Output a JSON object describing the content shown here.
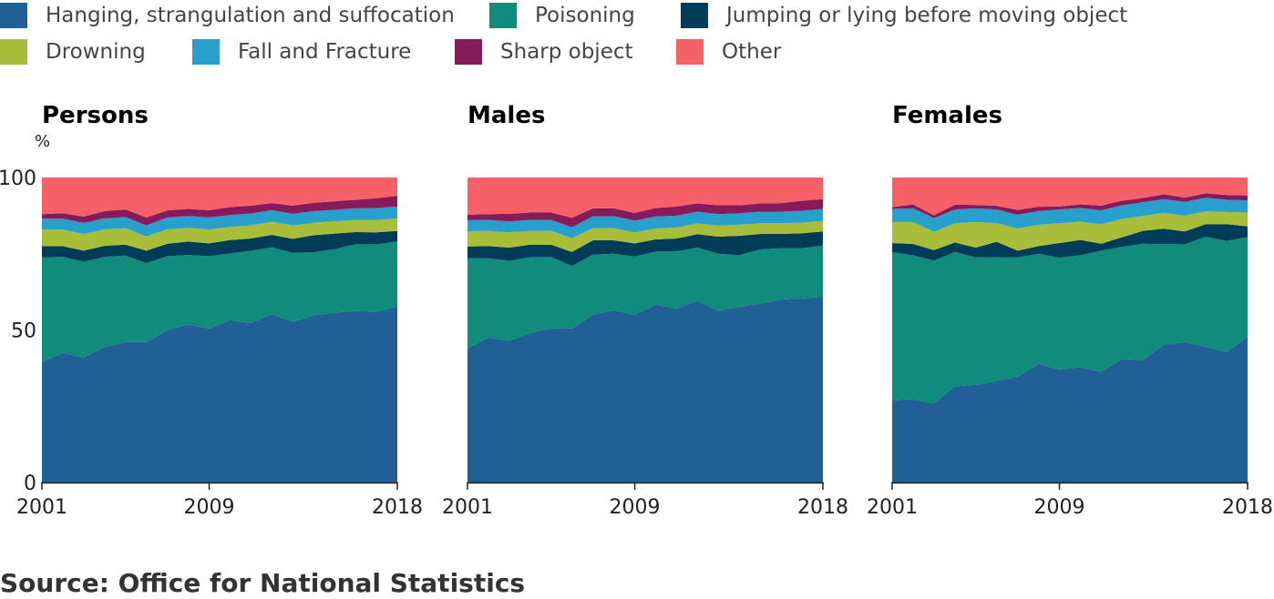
{
  "legend": [
    {
      "label": "Hanging, strangulation and suffocation",
      "color": "#206095"
    },
    {
      "label": "Poisoning",
      "color": "#118c7b"
    },
    {
      "label": "Jumping or lying before moving object",
      "color": "#003c57"
    },
    {
      "label": "Drowning",
      "color": "#a8bd3a"
    },
    {
      "label": "Fall and Fracture",
      "color": "#27a0cc"
    },
    {
      "label": "Sharp object",
      "color": "#871a5b"
    },
    {
      "label": "Other",
      "color": "#f66068"
    }
  ],
  "source": "Source: Office for National Statistics",
  "chart_data": [
    {
      "type": "area",
      "stacked": true,
      "title": "Persons",
      "ylabel": "%",
      "ylim": [
        0,
        100
      ],
      "yticks": [
        0,
        50,
        100
      ],
      "xticks": [
        2001,
        2009,
        2018
      ],
      "x": [
        2001,
        2002,
        2003,
        2004,
        2005,
        2006,
        2007,
        2008,
        2009,
        2010,
        2011,
        2012,
        2013,
        2014,
        2015,
        2016,
        2017,
        2018
      ],
      "series": [
        {
          "name": "Hanging, strangulation and suffocation",
          "values": [
            39.5,
            42.5,
            41,
            44.5,
            46,
            46,
            50,
            51.8,
            50.5,
            53.2,
            52.3,
            55.2,
            52.7,
            54.8,
            55.7,
            56.2,
            56,
            57.7
          ]
        },
        {
          "name": "Poisoning",
          "values": [
            34.3,
            31.5,
            31.4,
            29.5,
            28.4,
            25.9,
            24.2,
            22.8,
            23.7,
            21.9,
            23.7,
            21.9,
            22.6,
            20.7,
            20.8,
            21.9,
            22.1,
            21.3
          ]
        },
        {
          "name": "Jumping or lying before moving object",
          "values": [
            3.7,
            3.5,
            3.6,
            3.6,
            3.6,
            4.1,
            4.1,
            4.4,
            4.2,
            4.4,
            4.0,
            4.1,
            4.6,
            5.6,
            5.1,
            4.0,
            3.9,
            3.5
          ]
        },
        {
          "name": "Drowning",
          "values": [
            5.4,
            5.4,
            5.5,
            5.4,
            5.4,
            4.7,
            4.7,
            4.5,
            4.6,
            4.3,
            4.3,
            4.3,
            4.4,
            4.1,
            4.0,
            4.0,
            4.1,
            4.1
          ]
        },
        {
          "name": "Fall and Fracture",
          "values": [
            3.6,
            3.6,
            3.6,
            3.6,
            3.6,
            3.6,
            3.9,
            3.9,
            3.9,
            3.9,
            3.9,
            3.8,
            3.8,
            3.8,
            3.8,
            3.8,
            3.9,
            3.9
          ]
        },
        {
          "name": "Sharp object",
          "values": [
            1.5,
            1.8,
            2.1,
            2.4,
            2.5,
            2.6,
            2.3,
            2.3,
            2.4,
            2.6,
            2.6,
            2.3,
            2.7,
            2.7,
            2.8,
            2.8,
            3.2,
            3.5
          ]
        },
        {
          "name": "Other",
          "values": [
            12.0,
            11.7,
            12.8,
            11.0,
            10.5,
            13.1,
            10.8,
            10.3,
            10.7,
            9.7,
            9.2,
            8.4,
            9.2,
            8.3,
            7.8,
            7.3,
            6.8,
            6.0
          ]
        }
      ]
    },
    {
      "type": "area",
      "stacked": true,
      "title": "Males",
      "ylim": [
        0,
        100
      ],
      "xticks": [
        2001,
        2009,
        2018
      ],
      "x": [
        2001,
        2002,
        2003,
        2004,
        2005,
        2006,
        2007,
        2008,
        2009,
        2010,
        2011,
        2012,
        2013,
        2014,
        2015,
        2016,
        2017,
        2018
      ],
      "series": [
        {
          "name": "Hanging, strangulation and suffocation",
          "values": [
            44,
            47.5,
            46.5,
            49,
            50.5,
            50.5,
            55,
            56.5,
            55,
            58.3,
            57,
            59.5,
            56.3,
            57.5,
            58.7,
            60,
            60.3,
            60.9
          ]
        },
        {
          "name": "Poisoning",
          "values": [
            29.6,
            26.0,
            26.2,
            24.9,
            23.4,
            20.5,
            19.7,
            18.5,
            19.1,
            17.4,
            18.8,
            17.5,
            18.7,
            17.0,
            17.7,
            16.8,
            16.5,
            16.8
          ]
        },
        {
          "name": "Jumping or lying before moving object",
          "values": [
            3.8,
            4.0,
            4.3,
            4.1,
            4.1,
            4.6,
            4.7,
            4.4,
            4.3,
            4.0,
            4.2,
            4.4,
            5.6,
            6.4,
            5.1,
            4.7,
            4.9,
            4.6
          ]
        },
        {
          "name": "Drowning",
          "values": [
            5.0,
            5.0,
            5.0,
            4.5,
            4.5,
            4.5,
            4.0,
            4.0,
            3.6,
            3.6,
            3.6,
            3.6,
            3.6,
            3.6,
            3.5,
            3.5,
            3.5,
            3.5
          ]
        },
        {
          "name": "Fall and Fracture",
          "values": [
            3.6,
            3.6,
            3.6,
            3.6,
            3.6,
            3.6,
            3.9,
            3.9,
            3.9,
            3.9,
            3.9,
            3.8,
            3.8,
            3.8,
            3.8,
            3.8,
            3.9,
            3.9
          ]
        },
        {
          "name": "Sharp object",
          "values": [
            1.8,
            1.9,
            2.5,
            2.4,
            2.4,
            3.1,
            2.6,
            2.6,
            2.5,
            2.8,
            3.0,
            2.7,
            2.9,
            2.6,
            2.7,
            2.8,
            3.3,
            3.2
          ]
        },
        {
          "name": "Other",
          "values": [
            12.2,
            12.0,
            11.9,
            11.5,
            11.5,
            13.2,
            10.1,
            10.1,
            11.6,
            10.0,
            9.5,
            8.5,
            9.1,
            9.1,
            8.5,
            8.4,
            7.6,
            7.1
          ]
        }
      ]
    },
    {
      "type": "area",
      "stacked": true,
      "title": "Females",
      "ylim": [
        0,
        100
      ],
      "xticks": [
        2001,
        2009,
        2018
      ],
      "x": [
        2001,
        2002,
        2003,
        2004,
        2005,
        2006,
        2007,
        2008,
        2009,
        2010,
        2011,
        2012,
        2013,
        2014,
        2015,
        2016,
        2017,
        2018
      ],
      "series": [
        {
          "name": "Hanging, strangulation and suffocation",
          "values": [
            27,
            27.3,
            26,
            31.5,
            32,
            33.3,
            34.7,
            38.9,
            37,
            37.8,
            36.3,
            40.5,
            40.2,
            45.2,
            46,
            44.5,
            42.7,
            47.8
          ]
        },
        {
          "name": "Poisoning",
          "values": [
            48.5,
            47.2,
            46.8,
            44.1,
            41.8,
            40.6,
            39.1,
            36.1,
            36.7,
            36.7,
            39.7,
            36.8,
            38.1,
            33.0,
            32.1,
            36.1,
            36.5,
            32.7
          ]
        },
        {
          "name": "Jumping or lying before moving object",
          "values": [
            3.0,
            3.7,
            3.4,
            3.1,
            3.2,
            5.0,
            2.2,
            2.5,
            4.8,
            5.0,
            2.3,
            3.1,
            4.2,
            5.0,
            4.2,
            4.1,
            5.5,
            3.5
          ]
        },
        {
          "name": "Drowning",
          "values": [
            6.9,
            7.2,
            6.0,
            6.3,
            8.4,
            6.1,
            7.3,
            7.0,
            6.5,
            6.0,
            6.4,
            6.0,
            4.9,
            5.2,
            5.2,
            4.2,
            4.0,
            4.5
          ]
        },
        {
          "name": "Fall and Fracture",
          "values": [
            4.3,
            4.5,
            4.5,
            4.5,
            4.5,
            4.5,
            4.5,
            4.5,
            4.5,
            4.5,
            4.5,
            4.5,
            4.5,
            4.5,
            4.5,
            4.5,
            4.0,
            4.0
          ]
        },
        {
          "name": "Sharp object",
          "values": [
            0.6,
            1.3,
            0.9,
            1.6,
            1.1,
            1.2,
            1.6,
            1.4,
            1.0,
            1.2,
            1.6,
            1.5,
            1.4,
            1.6,
            1.4,
            1.4,
            1.6,
            1.6
          ]
        },
        {
          "name": "Other",
          "values": [
            9.7,
            8.8,
            12.4,
            8.9,
            9.0,
            9.3,
            10.6,
            9.6,
            9.5,
            8.8,
            9.2,
            7.6,
            6.7,
            5.5,
            6.6,
            5.2,
            5.7,
            5.9
          ]
        }
      ]
    }
  ]
}
